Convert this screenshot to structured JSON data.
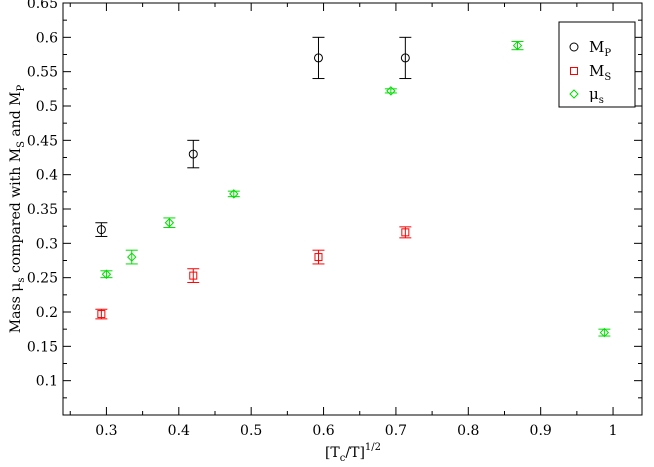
{
  "chart_data": {
    "type": "scatter",
    "title": "",
    "xlim": [
      0.24,
      1.04
    ],
    "ylim": [
      0.05,
      0.65
    ],
    "x_ticks": [
      "0.3",
      "0.4",
      "0.5",
      "0.6",
      "0.7",
      "0.8",
      "0.9",
      "1"
    ],
    "x_tick_values": [
      0.3,
      0.4,
      0.5,
      0.6,
      0.7,
      0.8,
      0.9,
      1.0
    ],
    "y_ticks": [
      "0.1",
      "0.15",
      "0.2",
      "0.25",
      "0.3",
      "0.35",
      "0.4",
      "0.45",
      "0.5",
      "0.55",
      "0.6",
      "0.65"
    ],
    "y_tick_values": [
      0.1,
      0.15,
      0.2,
      0.25,
      0.3,
      0.35,
      0.4,
      0.45,
      0.5,
      0.55,
      0.6,
      0.65
    ],
    "xlabel": {
      "main": "[T",
      "sub": "c",
      "mid": "/T]",
      "sup": "1/2"
    },
    "ylabel": {
      "p1": "Mass μ",
      "s1": "s",
      "p2": " compared with M",
      "s2": "S",
      "p3": " and M",
      "s3": "P"
    },
    "grid": false,
    "legend_position": "top-right",
    "series": [
      {
        "name_main": "M",
        "name_sub": "P",
        "marker": "circle",
        "color": "#000000",
        "points": [
          {
            "x": 0.293,
            "y": 0.32,
            "err": 0.01
          },
          {
            "x": 0.42,
            "y": 0.43,
            "err": 0.02
          },
          {
            "x": 0.593,
            "y": 0.57,
            "err": 0.03
          },
          {
            "x": 0.713,
            "y": 0.57,
            "err": 0.03
          }
        ]
      },
      {
        "name_main": "M",
        "name_sub": "S",
        "marker": "square",
        "color": "#ff0000",
        "points": [
          {
            "x": 0.293,
            "y": 0.197,
            "err": 0.007
          },
          {
            "x": 0.42,
            "y": 0.253,
            "err": 0.01
          },
          {
            "x": 0.593,
            "y": 0.28,
            "err": 0.01
          },
          {
            "x": 0.713,
            "y": 0.316,
            "err": 0.008
          }
        ]
      },
      {
        "name_main": "μ",
        "name_sub": "s",
        "marker": "diamond",
        "color": "#00dd00",
        "points": [
          {
            "x": 0.3,
            "y": 0.255,
            "err": 0.005
          },
          {
            "x": 0.335,
            "y": 0.28,
            "err": 0.01
          },
          {
            "x": 0.387,
            "y": 0.33,
            "err": 0.007
          },
          {
            "x": 0.476,
            "y": 0.372,
            "err": 0.004
          },
          {
            "x": 0.693,
            "y": 0.522,
            "err": 0.003
          },
          {
            "x": 0.868,
            "y": 0.588,
            "err": 0.006
          },
          {
            "x": 0.988,
            "y": 0.17,
            "err": 0.005
          }
        ]
      }
    ]
  }
}
